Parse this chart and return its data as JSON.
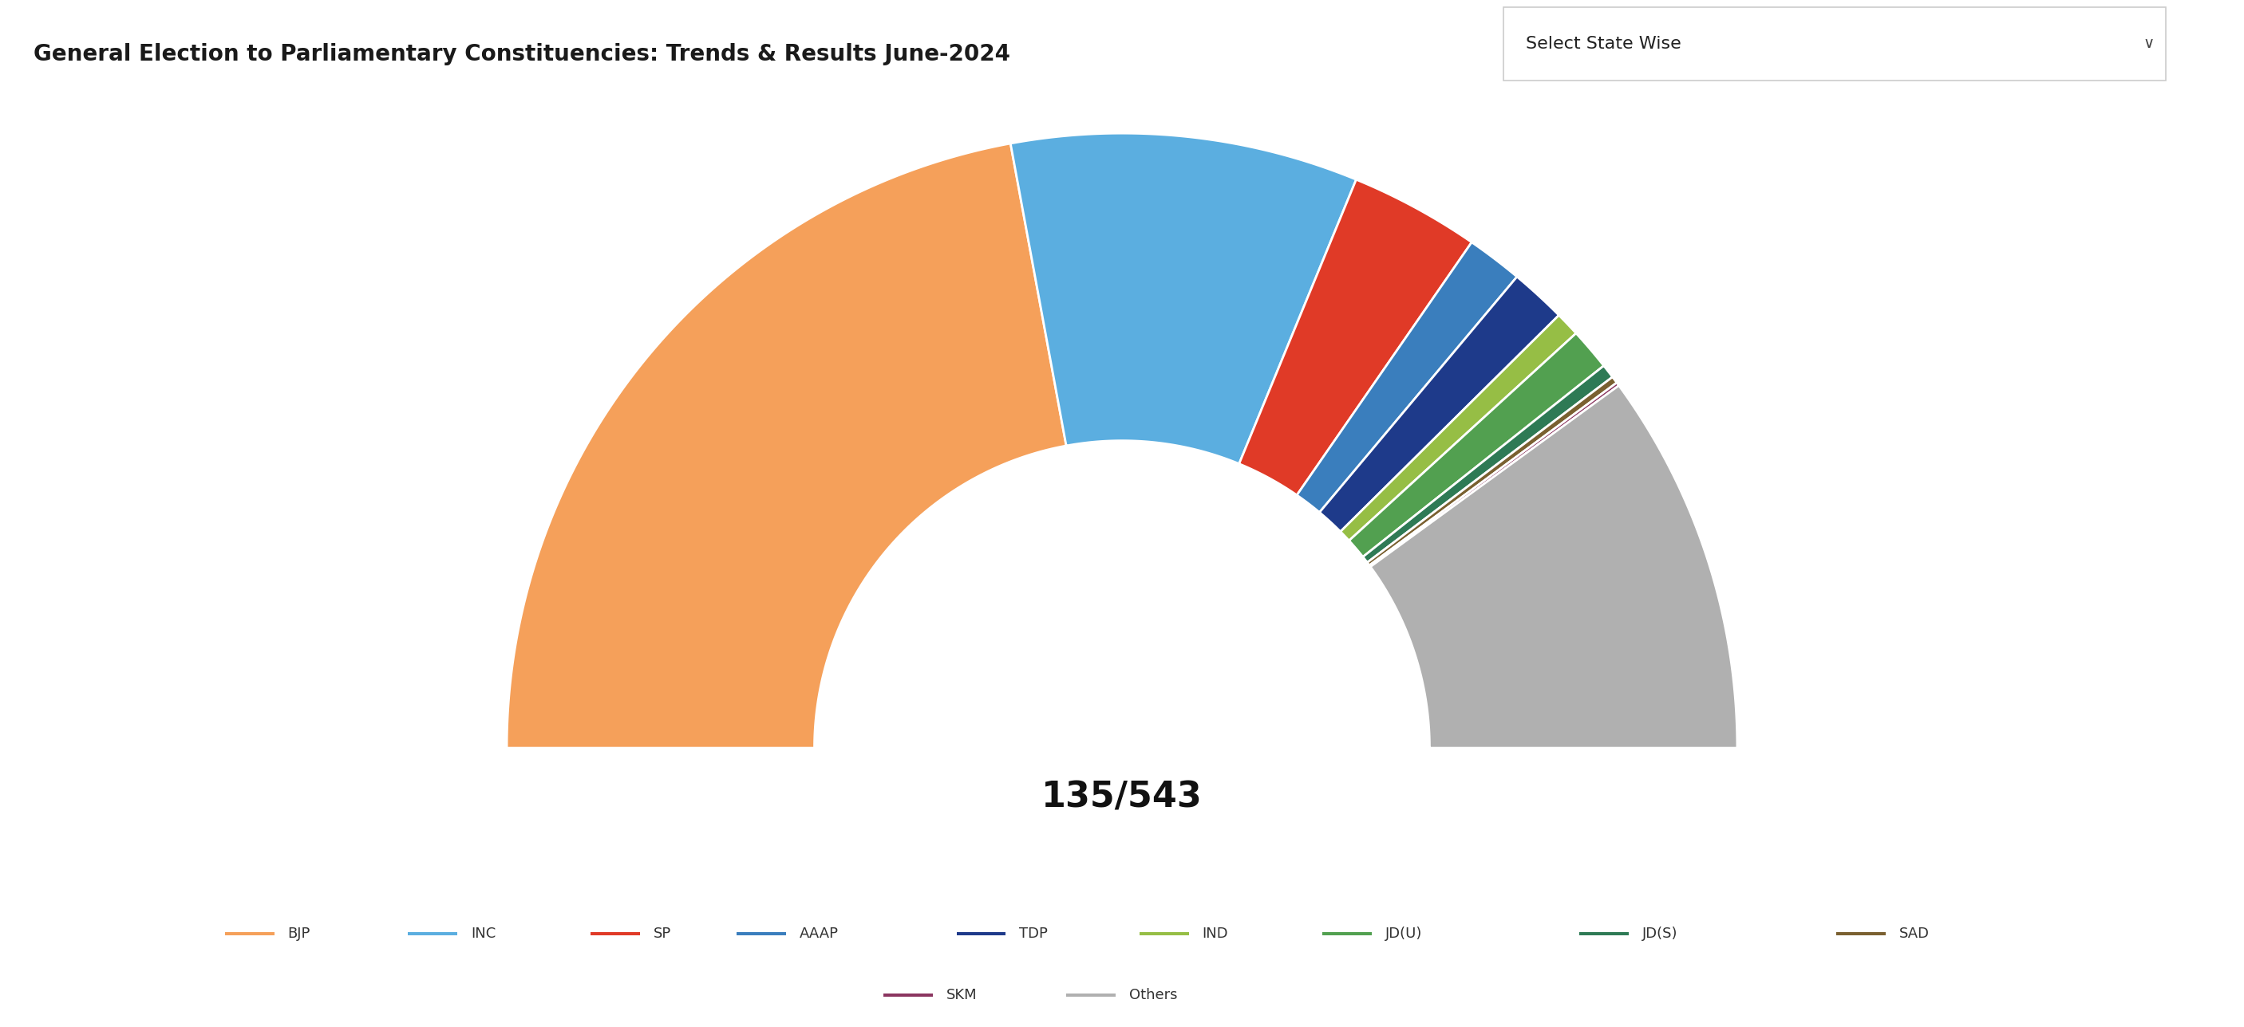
{
  "title": "General Election to Parliamentary Constituencies: Trends & Results June-2024",
  "dropdown_label": "Select State Wise",
  "center_text": "135/543",
  "parties": [
    "BJP",
    "INC",
    "SP",
    "AAAP",
    "TDP",
    "IND",
    "JD(U)",
    "JD(S)",
    "SAD",
    "SKM",
    "Others"
  ],
  "seats": [
    240,
    99,
    37,
    16,
    16,
    7,
    12,
    4,
    2,
    1,
    109
  ],
  "colors": [
    "#F5A05A",
    "#5BAEE0",
    "#E03A27",
    "#3A7EBD",
    "#1E3A8A",
    "#96BE45",
    "#52A050",
    "#2E7A55",
    "#7A6030",
    "#8B3560",
    "#B0B0B0"
  ],
  "header_bg": "#C8C0F0",
  "chart_bg": "#FFFFFF",
  "header_text_color": "#1a1a1a",
  "total_seats": 543,
  "outer_r": 1.0,
  "inner_r": 0.5
}
